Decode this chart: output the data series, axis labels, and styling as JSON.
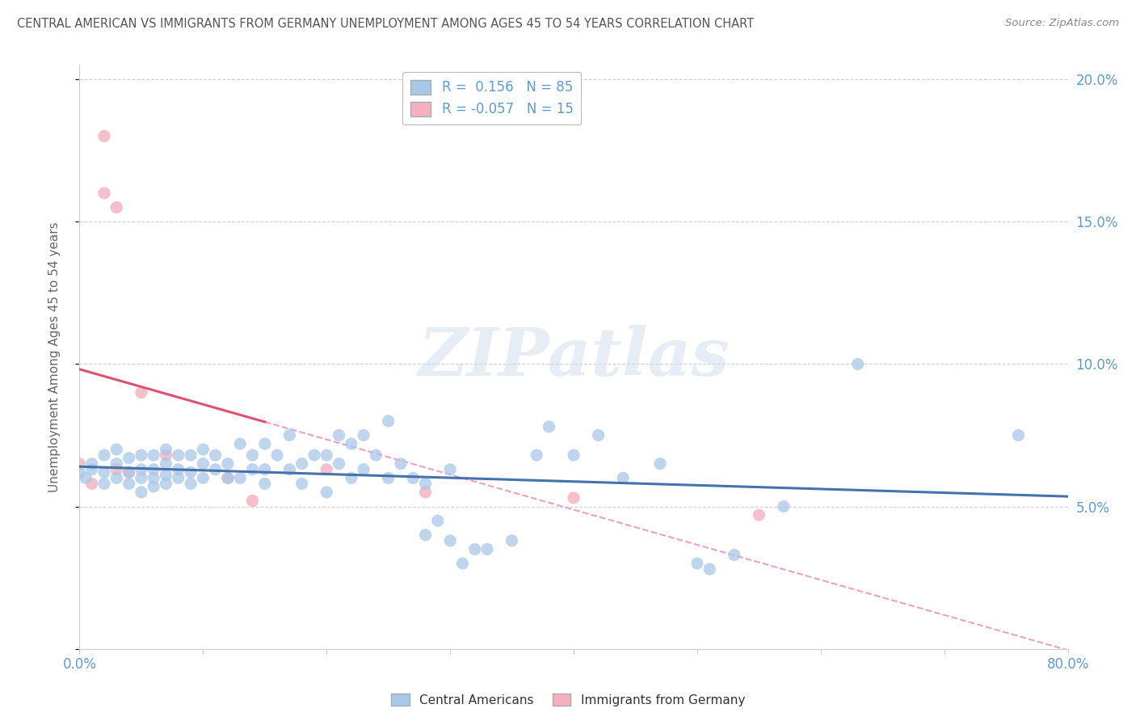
{
  "title": "CENTRAL AMERICAN VS IMMIGRANTS FROM GERMANY UNEMPLOYMENT AMONG AGES 45 TO 54 YEARS CORRELATION CHART",
  "source": "Source: ZipAtlas.com",
  "ylabel": "Unemployment Among Ages 45 to 54 years",
  "xlim": [
    0.0,
    0.8
  ],
  "ylim": [
    0.0,
    0.205
  ],
  "x_ticks": [
    0.0,
    0.1,
    0.2,
    0.3,
    0.4,
    0.5,
    0.6,
    0.7,
    0.8
  ],
  "y_ticks": [
    0.0,
    0.05,
    0.1,
    0.15,
    0.2
  ],
  "y_tick_labels": [
    "",
    "5.0%",
    "10.0%",
    "15.0%",
    "20.0%"
  ],
  "blue_R": 0.156,
  "blue_N": 85,
  "pink_R": -0.057,
  "pink_N": 15,
  "blue_color": "#a8c8e8",
  "pink_color": "#f4b0c0",
  "blue_line_color": "#4472aa",
  "pink_line_color": "#e05070",
  "pink_dashed_color": "#f0a0b8",
  "blue_scatter_x": [
    0.0,
    0.005,
    0.01,
    0.01,
    0.02,
    0.02,
    0.02,
    0.03,
    0.03,
    0.03,
    0.04,
    0.04,
    0.04,
    0.05,
    0.05,
    0.05,
    0.05,
    0.06,
    0.06,
    0.06,
    0.06,
    0.07,
    0.07,
    0.07,
    0.07,
    0.08,
    0.08,
    0.08,
    0.09,
    0.09,
    0.09,
    0.1,
    0.1,
    0.1,
    0.11,
    0.11,
    0.12,
    0.12,
    0.13,
    0.13,
    0.14,
    0.14,
    0.15,
    0.15,
    0.15,
    0.16,
    0.17,
    0.17,
    0.18,
    0.18,
    0.19,
    0.2,
    0.2,
    0.21,
    0.21,
    0.22,
    0.22,
    0.23,
    0.23,
    0.24,
    0.25,
    0.25,
    0.26,
    0.27,
    0.28,
    0.28,
    0.29,
    0.3,
    0.3,
    0.31,
    0.32,
    0.33,
    0.35,
    0.37,
    0.38,
    0.4,
    0.42,
    0.44,
    0.47,
    0.5,
    0.51,
    0.53,
    0.57,
    0.63,
    0.76
  ],
  "blue_scatter_y": [
    0.062,
    0.06,
    0.063,
    0.065,
    0.058,
    0.062,
    0.068,
    0.06,
    0.065,
    0.07,
    0.058,
    0.062,
    0.067,
    0.055,
    0.06,
    0.063,
    0.068,
    0.057,
    0.06,
    0.063,
    0.068,
    0.058,
    0.061,
    0.065,
    0.07,
    0.06,
    0.063,
    0.068,
    0.058,
    0.062,
    0.068,
    0.06,
    0.065,
    0.07,
    0.063,
    0.068,
    0.06,
    0.065,
    0.06,
    0.072,
    0.063,
    0.068,
    0.058,
    0.063,
    0.072,
    0.068,
    0.063,
    0.075,
    0.058,
    0.065,
    0.068,
    0.055,
    0.068,
    0.065,
    0.075,
    0.06,
    0.072,
    0.063,
    0.075,
    0.068,
    0.06,
    0.08,
    0.065,
    0.06,
    0.04,
    0.058,
    0.045,
    0.038,
    0.063,
    0.03,
    0.035,
    0.035,
    0.038,
    0.068,
    0.078,
    0.068,
    0.075,
    0.06,
    0.065,
    0.03,
    0.028,
    0.033,
    0.05,
    0.1,
    0.075
  ],
  "pink_scatter_x": [
    0.0,
    0.01,
    0.02,
    0.02,
    0.03,
    0.03,
    0.04,
    0.05,
    0.07,
    0.12,
    0.14,
    0.2,
    0.28,
    0.4,
    0.55
  ],
  "pink_scatter_y": [
    0.065,
    0.058,
    0.18,
    0.16,
    0.155,
    0.063,
    0.062,
    0.09,
    0.068,
    0.06,
    0.052,
    0.063,
    0.055,
    0.053,
    0.047
  ],
  "watermark_text": "ZIPatlas",
  "background_color": "#ffffff",
  "grid_color": "#cccccc"
}
